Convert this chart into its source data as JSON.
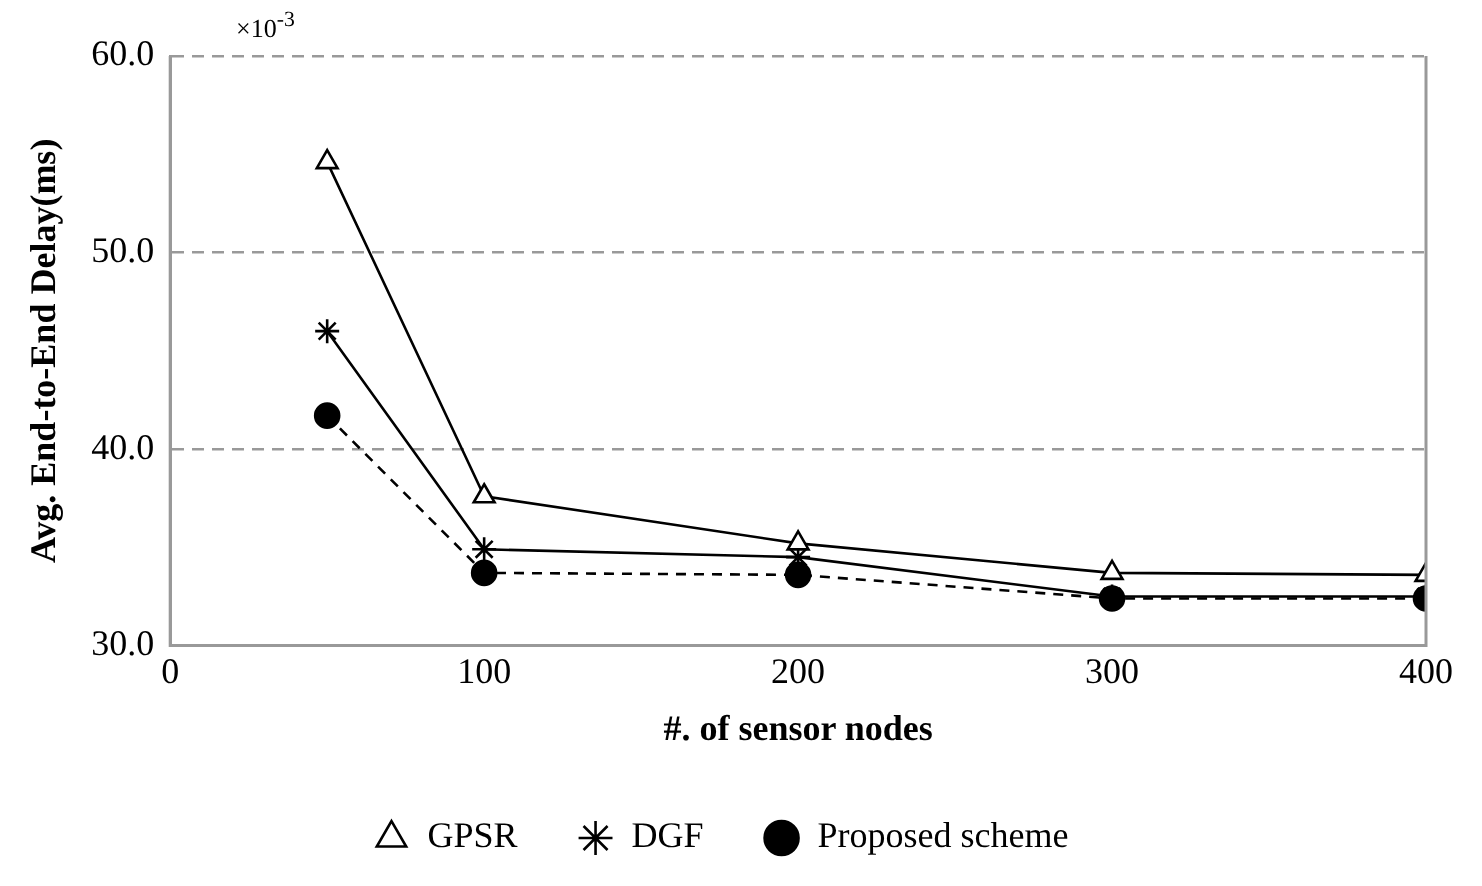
{
  "chart_data": {
    "type": "line",
    "xlabel": "#. of sensor nodes",
    "ylabel": "Avg. End-to-End Delay(ms)",
    "annotations": [
      "×10$^{-3}$"
    ],
    "x": [
      50,
      100,
      200,
      300,
      400
    ],
    "series": [
      {
        "name": "GPSR",
        "color": "#000000",
        "marker": "triangle",
        "line_style": "solid",
        "values": [
          54.6,
          37.6,
          35.2,
          33.7,
          33.6
        ]
      },
      {
        "name": "DGF",
        "color": "#000000",
        "marker": "cross",
        "line_style": "solid",
        "values": [
          46.0,
          34.9,
          34.5,
          32.5,
          32.5
        ]
      },
      {
        "name": "Proposed scheme",
        "color": "#000000",
        "marker": "circle",
        "line_style": "dashed",
        "values": [
          41.7,
          33.7,
          33.6,
          32.4,
          32.4
        ]
      }
    ],
    "xlim": [
      0,
      400
    ],
    "xticks": [
      0,
      100,
      200,
      300,
      400
    ],
    "ylim": [
      30,
      60
    ],
    "yticks": [
      {
        "value": 30,
        "label": "30.0"
      },
      {
        "value": 40,
        "label": "40.0"
      },
      {
        "value": 50,
        "label": "50.0"
      },
      {
        "value": 60,
        "label": "60.0"
      }
    ],
    "grid": "y",
    "legend": "bottom"
  }
}
